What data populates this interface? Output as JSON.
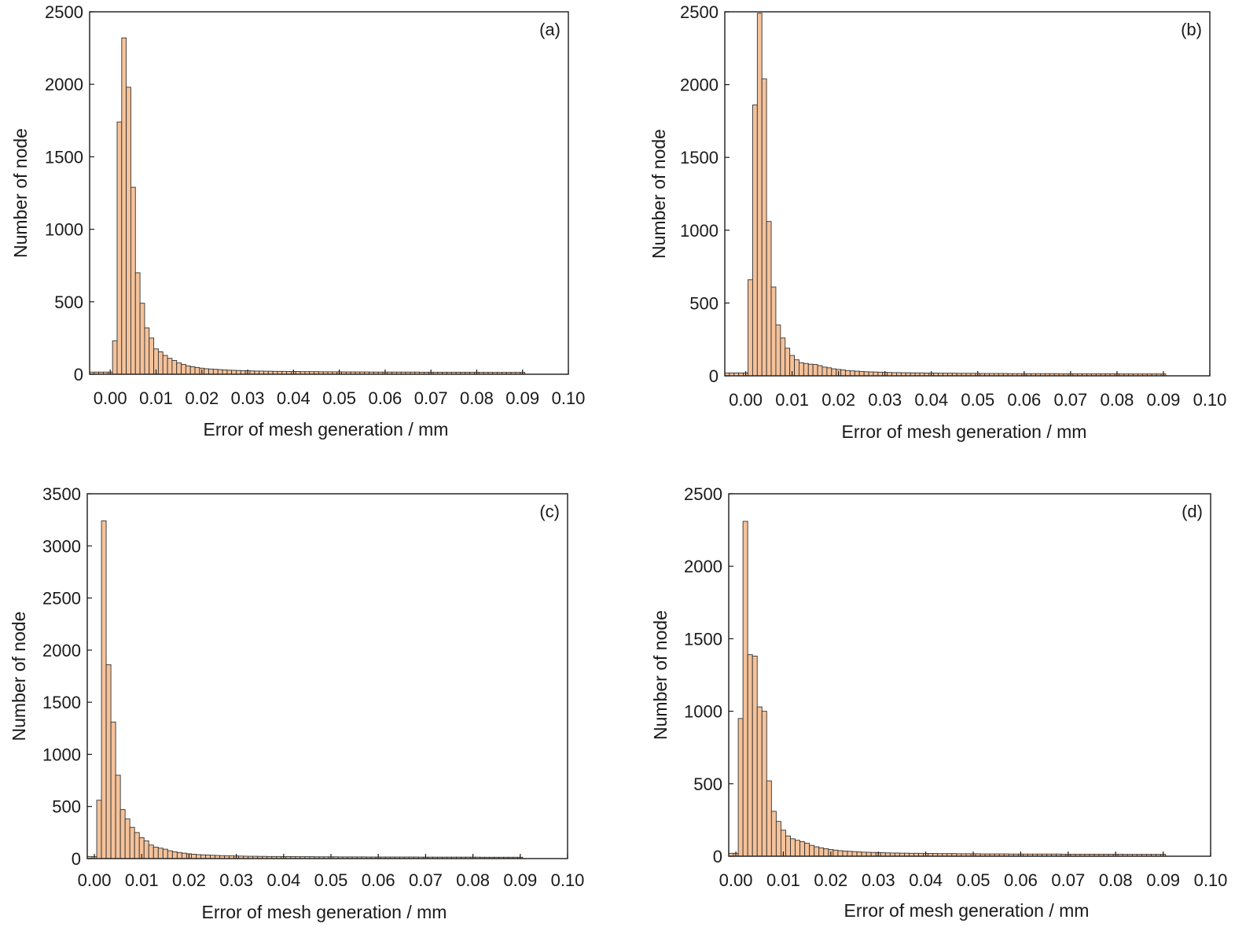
{
  "bar_fill": "#f5c29a",
  "bar_stroke": "#333333",
  "chart_data": [
    {
      "type": "bar",
      "panel_label": "(a)",
      "xlabel": "Error of mesh generation / mm",
      "ylabel": "Number of node",
      "xlim": [
        -0.0045,
        0.1
      ],
      "ylim": [
        0,
        2500
      ],
      "xticks": [
        0.0,
        0.01,
        0.02,
        0.03,
        0.04,
        0.05,
        0.06,
        0.07,
        0.08,
        0.09,
        0.1
      ],
      "xtick_labels": [
        "0.00",
        "0.01",
        "0.02",
        "0.03",
        "0.04",
        "0.05",
        "0.06",
        "0.07",
        "0.08",
        "0.09",
        "0.10"
      ],
      "yticks": [
        0,
        500,
        1000,
        1500,
        2000,
        2500
      ],
      "bin_width": 0.001,
      "bin_start": -0.0045,
      "values": [
        15,
        15,
        15,
        15,
        15,
        230,
        1740,
        2320,
        1980,
        1290,
        700,
        490,
        320,
        250,
        175,
        155,
        130,
        110,
        95,
        78,
        68,
        58,
        52,
        46,
        42,
        38,
        36,
        34,
        32,
        30,
        28,
        27,
        26,
        25,
        24,
        23,
        22,
        22,
        21,
        21,
        20,
        20,
        20,
        19,
        19,
        19,
        18,
        18,
        18,
        18,
        17,
        17,
        17,
        17,
        17,
        16,
        16,
        16,
        16,
        16,
        16,
        15,
        15,
        15,
        15,
        15,
        15,
        15,
        15,
        15,
        15,
        15,
        14,
        14,
        14,
        14,
        14,
        14,
        14,
        14,
        14,
        14,
        14,
        14,
        14,
        13,
        13,
        13,
        13,
        13,
        13,
        13,
        13,
        13,
        13
      ]
    },
    {
      "type": "bar",
      "panel_label": "(b)",
      "xlabel": "Error of mesh generation / mm",
      "ylabel": "Number of node",
      "xlim": [
        -0.0045,
        0.1
      ],
      "ylim": [
        0,
        2500
      ],
      "xticks": [
        0.0,
        0.01,
        0.02,
        0.03,
        0.04,
        0.05,
        0.06,
        0.07,
        0.08,
        0.09,
        0.1
      ],
      "xtick_labels": [
        "0.00",
        "0.01",
        "0.02",
        "0.03",
        "0.04",
        "0.05",
        "0.06",
        "0.07",
        "0.08",
        "0.09",
        "0.10"
      ],
      "yticks": [
        0,
        500,
        1000,
        1500,
        2000,
        2500
      ],
      "bin_width": 0.001,
      "bin_start": -0.0045,
      "values": [
        20,
        20,
        20,
        20,
        20,
        660,
        1860,
        2490,
        2040,
        1060,
        610,
        350,
        260,
        190,
        140,
        110,
        90,
        85,
        80,
        78,
        70,
        60,
        55,
        48,
        44,
        40,
        36,
        34,
        32,
        30,
        28,
        27,
        26,
        25,
        24,
        23,
        22,
        22,
        21,
        21,
        20,
        20,
        20,
        19,
        19,
        19,
        18,
        18,
        18,
        18,
        17,
        17,
        17,
        17,
        17,
        16,
        16,
        16,
        16,
        16,
        16,
        15,
        15,
        15,
        15,
        15,
        15,
        15,
        15,
        15,
        15,
        15,
        14,
        14,
        14,
        14,
        14,
        14,
        14,
        14,
        14,
        14,
        14,
        14,
        14,
        13,
        13,
        13,
        13,
        13,
        13,
        13,
        13,
        13,
        13
      ]
    },
    {
      "type": "bar",
      "panel_label": "(c)",
      "xlabel": "Error of mesh generation / mm",
      "ylabel": "Number of node",
      "xlim": [
        -0.0015,
        0.1
      ],
      "ylim": [
        0,
        3500
      ],
      "xticks": [
        0.0,
        0.01,
        0.02,
        0.03,
        0.04,
        0.05,
        0.06,
        0.07,
        0.08,
        0.09,
        0.1
      ],
      "xtick_labels": [
        "0.00",
        "0.01",
        "0.02",
        "0.03",
        "0.04",
        "0.05",
        "0.06",
        "0.07",
        "0.08",
        "0.09",
        "0.10"
      ],
      "yticks": [
        0,
        500,
        1000,
        1500,
        2000,
        2500,
        3000,
        3500
      ],
      "bin_width": 0.001,
      "bin_start": -0.0015,
      "values": [
        20,
        20,
        560,
        3240,
        1860,
        1310,
        800,
        470,
        380,
        300,
        250,
        200,
        170,
        130,
        110,
        100,
        90,
        75,
        65,
        58,
        52,
        46,
        42,
        38,
        36,
        34,
        32,
        30,
        28,
        27,
        26,
        25,
        24,
        23,
        22,
        22,
        21,
        21,
        20,
        20,
        20,
        19,
        19,
        19,
        18,
        18,
        18,
        18,
        17,
        17,
        17,
        17,
        17,
        16,
        16,
        16,
        16,
        16,
        16,
        15,
        15,
        15,
        15,
        15,
        15,
        15,
        15,
        15,
        15,
        15,
        14,
        14,
        14,
        14,
        14,
        14,
        14,
        14,
        14,
        14,
        14,
        14,
        14,
        13,
        13,
        13,
        13,
        13,
        13,
        13,
        13,
        13
      ]
    },
    {
      "type": "bar",
      "panel_label": "(d)",
      "xlabel": "Error of mesh generation / mm",
      "ylabel": "Number of node",
      "xlim": [
        -0.0015,
        0.1
      ],
      "ylim": [
        0,
        2500
      ],
      "xticks": [
        0.0,
        0.01,
        0.02,
        0.03,
        0.04,
        0.05,
        0.06,
        0.07,
        0.08,
        0.09,
        0.1
      ],
      "xtick_labels": [
        "0.00",
        "0.01",
        "0.02",
        "0.03",
        "0.04",
        "0.05",
        "0.06",
        "0.07",
        "0.08",
        "0.09",
        "0.10"
      ],
      "yticks": [
        0,
        500,
        1000,
        1500,
        2000,
        2500
      ],
      "bin_width": 0.001,
      "bin_start": -0.0015,
      "values": [
        20,
        20,
        950,
        2310,
        1390,
        1380,
        1030,
        1000,
        520,
        310,
        240,
        180,
        140,
        120,
        110,
        100,
        90,
        75,
        65,
        58,
        52,
        46,
        42,
        38,
        36,
        34,
        32,
        30,
        28,
        27,
        26,
        25,
        24,
        23,
        22,
        22,
        21,
        21,
        20,
        20,
        20,
        19,
        19,
        19,
        18,
        18,
        18,
        18,
        17,
        17,
        17,
        17,
        17,
        16,
        16,
        16,
        16,
        16,
        16,
        15,
        15,
        15,
        15,
        15,
        15,
        15,
        15,
        15,
        15,
        15,
        14,
        14,
        14,
        14,
        14,
        14,
        14,
        14,
        14,
        14,
        14,
        14,
        14,
        13,
        13,
        13,
        13,
        13,
        13,
        13,
        13,
        13
      ]
    }
  ]
}
